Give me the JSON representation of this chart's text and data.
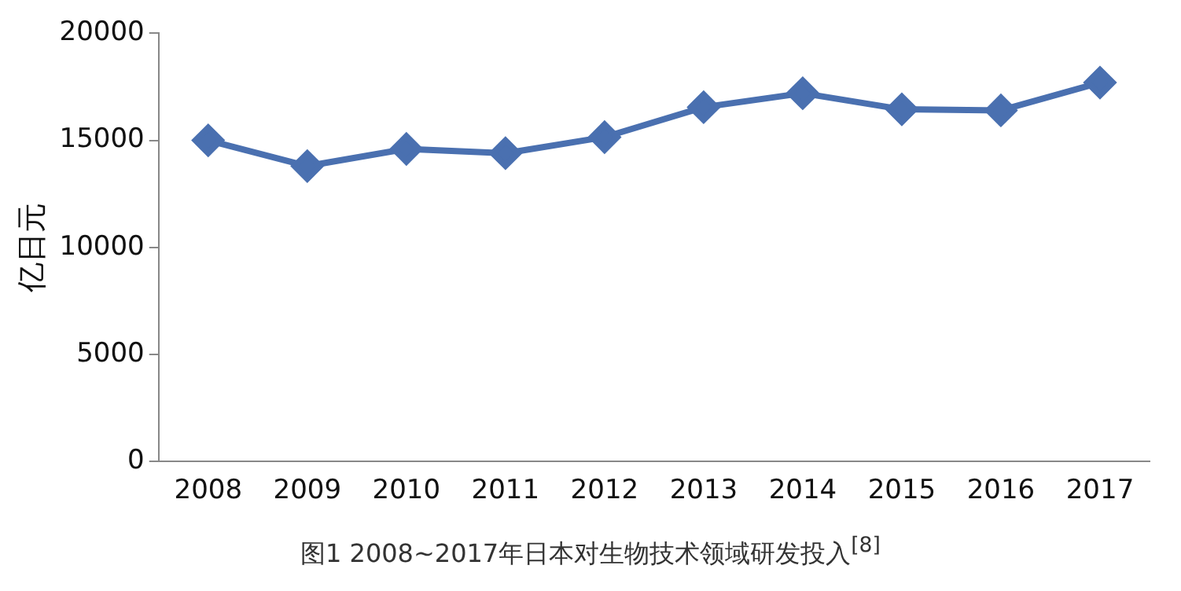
{
  "chart_data": {
    "type": "line",
    "title": "图1  2008~2017年日本对生物技术领域研发投入$^{[8]}$",
    "ylabel": "亿日元",
    "categories": [
      "2008",
      "2009",
      "2010",
      "2011",
      "2012",
      "2013",
      "2014",
      "2015",
      "2016",
      "2017"
    ],
    "series": [
      {
        "color": "#4a70b0",
        "values": [
          15000,
          13800,
          14600,
          14400,
          15150,
          16550,
          17200,
          16450,
          16400,
          17700
        ]
      }
    ],
    "ylim": [
      0,
      20000
    ],
    "yticks": [
      0,
      5000,
      10000,
      15000,
      20000
    ],
    "grid": false,
    "legend": false,
    "marker": "diamond",
    "line_style": "solid"
  }
}
